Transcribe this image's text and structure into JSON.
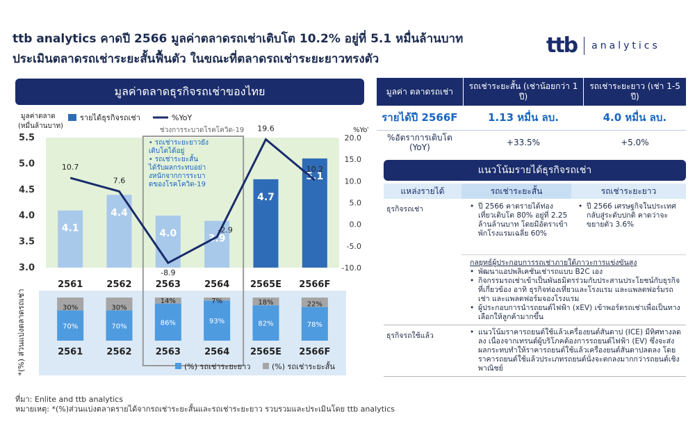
{
  "title_line1": "ttb analytics คาดปี 2566 มูลค่าตลาดรถเช่าเติบโต 10.2% อยู่ที่ 5.1 หมื่นล้านบาท",
  "title_line2": "ประเมินตลาดรถเช่าระยะสั้นฟื้นตัว ในขณะที่ตลาดรถเช่าระยะยาวทรงตัว",
  "logo": {
    "mark": "ttb",
    "text": "analytics"
  },
  "left_header": "มูลค่าตลาดธุรกิจรถเช่าของไทย",
  "covid_note_title": "ช่วงการระบาดโรคโควิด-19",
  "covid_notes": [
    "รถเช่าระยะยาวยังเติบโตได้อยู่",
    "รถเช่าระยะสั้นได้รับผลกระทบอย่างหนักจากการระบาดของโรคโควิด-19"
  ],
  "source": "ที่มา: Enlite and ttb analytics",
  "remark": "หมายเหตุ: *(%)ส่วนแบ่งตลาดรายได้จากรถเช่าระยะสั้นและรถเช่าระยะยาว รวบรวมและประเมินโดย ttb analytics",
  "colors": {
    "navy": "#1a2c6b",
    "bar_light": "#a9c9ea",
    "bar_dark": "#2f6cb7",
    "longterm": "#4e9be0",
    "shortterm": "#a5a5a5",
    "top_bg": "#e3f1d9",
    "bottom_bg": "#dbe9f6"
  },
  "chart_data": [
    {
      "type": "bar",
      "ylabel": "มูลค่าตลาด (หมื่นล้านบาท)",
      "y2label": "%YoY",
      "ylim": [
        3.0,
        5.5
      ],
      "y2lim": [
        -10.0,
        20.0
      ],
      "yticks": [
        "5.5",
        "5.0",
        "4.5",
        "4.0",
        "3.5",
        "3.0"
      ],
      "y2ticks": [
        "20.0",
        "15.0",
        "10.0",
        "5.0",
        "0.0",
        "-5.0",
        "-10.0"
      ],
      "categories": [
        "2561",
        "2562",
        "2563",
        "2564",
        "2565E",
        "2566F"
      ],
      "series": [
        {
          "name": "รายได้ธุรกิจรถเช่า",
          "values": [
            4.1,
            4.4,
            4.0,
            3.9,
            4.7,
            5.1
          ],
          "labels": [
            "4.1",
            "4.4",
            "4.0",
            "3.9",
            "4.7",
            "5.1"
          ]
        },
        {
          "name": "%YoY",
          "values": [
            10.7,
            7.6,
            -8.9,
            -2.9,
            19.6,
            10.2
          ],
          "labels": [
            "10.7",
            "7.6",
            "-8.9",
            "-2.9",
            "19.6",
            "10.2"
          ]
        }
      ],
      "grid": false,
      "legend": "top"
    },
    {
      "type": "bar",
      "ylabel": "*(%) ส่วนแบ่งตลาดรถเช่า",
      "categories": [
        "2561",
        "2562",
        "2563",
        "2564",
        "2565E",
        "2566F"
      ],
      "series": [
        {
          "name": "(%) รถเช่าระยะยาว",
          "values": [
            70,
            70,
            86,
            93,
            82,
            78
          ],
          "labels": [
            "70%",
            "70%",
            "86%",
            "93%",
            "82%",
            "78%"
          ]
        },
        {
          "name": "(%) รถเช่าระยะสั้น",
          "values": [
            30,
            30,
            14,
            7,
            18,
            22
          ],
          "labels": [
            "30%",
            "30%",
            "14%",
            "7%",
            "18%",
            "22%"
          ]
        }
      ],
      "stacked": true,
      "legend": "bottom"
    }
  ],
  "summary": {
    "headers": [
      "มูลค่า ตลาดรถเช่า",
      "รถเช่าระยะสั้น (เช่าน้อยกว่า 1 ปี)",
      "รถเช่าระยะยาว (เช่า 1-5 ปี)"
    ],
    "revenue": [
      "รายได้ปี 2566F",
      "1.13 หมื่น ลบ.",
      "4.0 หมื่น ลบ."
    ],
    "growth": [
      "%อัตราการเติบโต (YoY)",
      "+33.5%",
      "+5.0%"
    ]
  },
  "trend": {
    "header": "แนวโน้มรายได้ธุรกิจรถเช่า",
    "columns": [
      "แหล่งรายได้",
      "รถเช่าระยะสั้น",
      "รถเช่าระยะยาว"
    ],
    "row1": {
      "source": "ธุรกิจรถเช่า",
      "short": [
        "ปี 2566 คาดรายได้ท่องเที่ยวเติบโต 80% อยู่ที่ 2.25 ล้านล้านบาท โดยมีอัตราเข้าพักโรงแรมเฉลี่ย 60%"
      ],
      "long": [
        "ปี 2566 เศรษฐกิจในประเทศกลับสู่ระดับปกติ คาดว่าจะขยายตัว 3.6%"
      ]
    },
    "strategy_title": "กลยุทธ์ผู้ประกอบการรถเช่าภายใต้ภาวะการแข่งขันสูง",
    "strategy": [
      "พัฒนาแอปพลิเคชันเช่ารถแบบ B2C เอง",
      "กิจกรรมรถเช่าเข้าเป็นพันธมิตรร่วมกับประสานประโยชน์กับธุรกิจที่เกี่ยวข้อง อาทิ ธุรกิจท่องเที่ยวและโรงแรม และแพลตฟอร์มรถเช่า และแพลตฟอร์มจองโรงแรม",
      "ผู้ประกอบการนำรถยนต์ไฟฟ้า (xEV) เข้าพอร์ตรถเช่าเพื่อเป็นทางเลือกให้ลูกค้ามากขึ้น"
    ],
    "row2": {
      "source": "ธุรกิจรถใช้แล้ว",
      "items": [
        "แนวโน้มราคารถยนต์ใช้แล้วเครื่องยนต์สันดาป (ICE) มีทิศทางลดลง เนื่องจากเทรนด์ผู้บริโภคต้องการรถยนต์ไฟฟ้า (EV) ซึ่งจะส่งผลกระทบทำให้ราคารถยนต์ใช้แล้วเครื่องยนต์สันดาปลดลง โดยราคารถยนต์ใช้แล้วประเภทรถยนต์นั่งจะตกลงมากกว่ารถยนต์เชิงพาณิชย์"
      ]
    }
  }
}
